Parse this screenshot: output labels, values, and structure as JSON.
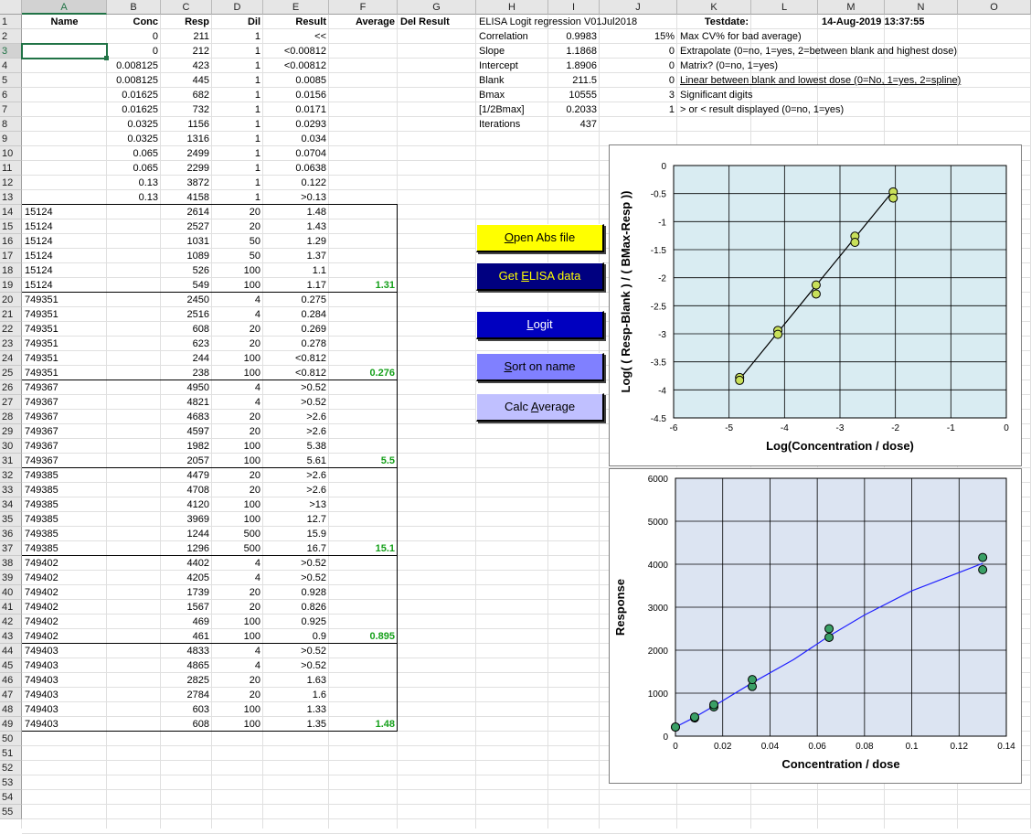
{
  "columns": [
    "A",
    "B",
    "C",
    "D",
    "E",
    "F",
    "G",
    "H",
    "I",
    "J",
    "K",
    "L",
    "M",
    "N",
    "O"
  ],
  "headers": {
    "name": "Name",
    "conc": "Conc",
    "resp": "Resp",
    "dil": "Dil",
    "result": "Result",
    "average": "Average",
    "del_result": "Del Result"
  },
  "standards": [
    {
      "row": "2",
      "conc": "0",
      "resp": "211",
      "dil": "1",
      "result": "<<"
    },
    {
      "row": "3",
      "conc": "0",
      "resp": "212",
      "dil": "1",
      "result": "<0.00812"
    },
    {
      "row": "4",
      "conc": "0.008125",
      "resp": "423",
      "dil": "1",
      "result": "<0.00812"
    },
    {
      "row": "5",
      "conc": "0.008125",
      "resp": "445",
      "dil": "1",
      "result": "0.0085"
    },
    {
      "row": "6",
      "conc": "0.01625",
      "resp": "682",
      "dil": "1",
      "result": "0.0156"
    },
    {
      "row": "7",
      "conc": "0.01625",
      "resp": "732",
      "dil": "1",
      "result": "0.0171"
    },
    {
      "row": "8",
      "conc": "0.0325",
      "resp": "1156",
      "dil": "1",
      "result": "0.0293"
    },
    {
      "row": "9",
      "conc": "0.0325",
      "resp": "1316",
      "dil": "1",
      "result": "0.034"
    },
    {
      "row": "10",
      "conc": "0.065",
      "resp": "2499",
      "dil": "1",
      "result": "0.0704"
    },
    {
      "row": "11",
      "conc": "0.065",
      "resp": "2299",
      "dil": "1",
      "result": "0.0638"
    },
    {
      "row": "12",
      "conc": "0.13",
      "resp": "3872",
      "dil": "1",
      "result": "0.122"
    },
    {
      "row": "13",
      "conc": "0.13",
      "resp": "4158",
      "dil": "1",
      "result": ">0.13"
    }
  ],
  "samples": [
    {
      "row": "14",
      "name": "15124",
      "resp": "2614",
      "dil": "20",
      "result": "1.48",
      "avg": ""
    },
    {
      "row": "15",
      "name": "15124",
      "resp": "2527",
      "dil": "20",
      "result": "1.43",
      "avg": ""
    },
    {
      "row": "16",
      "name": "15124",
      "resp": "1031",
      "dil": "50",
      "result": "1.29",
      "avg": ""
    },
    {
      "row": "17",
      "name": "15124",
      "resp": "1089",
      "dil": "50",
      "result": "1.37",
      "avg": ""
    },
    {
      "row": "18",
      "name": "15124",
      "resp": "526",
      "dil": "100",
      "result": "1.1",
      "avg": ""
    },
    {
      "row": "19",
      "name": "15124",
      "resp": "549",
      "dil": "100",
      "result": "1.17",
      "avg": "1.31"
    },
    {
      "row": "20",
      "name": "749351",
      "resp": "2450",
      "dil": "4",
      "result": "0.275",
      "avg": ""
    },
    {
      "row": "21",
      "name": "749351",
      "resp": "2516",
      "dil": "4",
      "result": "0.284",
      "avg": ""
    },
    {
      "row": "22",
      "name": "749351",
      "resp": "608",
      "dil": "20",
      "result": "0.269",
      "avg": ""
    },
    {
      "row": "23",
      "name": "749351",
      "resp": "623",
      "dil": "20",
      "result": "0.278",
      "avg": ""
    },
    {
      "row": "24",
      "name": "749351",
      "resp": "244",
      "dil": "100",
      "result": "<0.812",
      "avg": ""
    },
    {
      "row": "25",
      "name": "749351",
      "resp": "238",
      "dil": "100",
      "result": "<0.812",
      "avg": "0.276"
    },
    {
      "row": "26",
      "name": "749367",
      "resp": "4950",
      "dil": "4",
      "result": ">0.52",
      "avg": ""
    },
    {
      "row": "27",
      "name": "749367",
      "resp": "4821",
      "dil": "4",
      "result": ">0.52",
      "avg": ""
    },
    {
      "row": "28",
      "name": "749367",
      "resp": "4683",
      "dil": "20",
      "result": ">2.6",
      "avg": ""
    },
    {
      "row": "29",
      "name": "749367",
      "resp": "4597",
      "dil": "20",
      "result": ">2.6",
      "avg": ""
    },
    {
      "row": "30",
      "name": "749367",
      "resp": "1982",
      "dil": "100",
      "result": "5.38",
      "avg": ""
    },
    {
      "row": "31",
      "name": "749367",
      "resp": "2057",
      "dil": "100",
      "result": "5.61",
      "avg": "5.5"
    },
    {
      "row": "32",
      "name": "749385",
      "resp": "4479",
      "dil": "20",
      "result": ">2.6",
      "avg": ""
    },
    {
      "row": "33",
      "name": "749385",
      "resp": "4708",
      "dil": "20",
      "result": ">2.6",
      "avg": ""
    },
    {
      "row": "34",
      "name": "749385",
      "resp": "4120",
      "dil": "100",
      "result": ">13",
      "avg": ""
    },
    {
      "row": "35",
      "name": "749385",
      "resp": "3969",
      "dil": "100",
      "result": "12.7",
      "avg": ""
    },
    {
      "row": "36",
      "name": "749385",
      "resp": "1244",
      "dil": "500",
      "result": "15.9",
      "avg": ""
    },
    {
      "row": "37",
      "name": "749385",
      "resp": "1296",
      "dil": "500",
      "result": "16.7",
      "avg": "15.1"
    },
    {
      "row": "38",
      "name": "749402",
      "resp": "4402",
      "dil": "4",
      "result": ">0.52",
      "avg": ""
    },
    {
      "row": "39",
      "name": "749402",
      "resp": "4205",
      "dil": "4",
      "result": ">0.52",
      "avg": ""
    },
    {
      "row": "40",
      "name": "749402",
      "resp": "1739",
      "dil": "20",
      "result": "0.928",
      "avg": ""
    },
    {
      "row": "41",
      "name": "749402",
      "resp": "1567",
      "dil": "20",
      "result": "0.826",
      "avg": ""
    },
    {
      "row": "42",
      "name": "749402",
      "resp": "469",
      "dil": "100",
      "result": "0.925",
      "avg": ""
    },
    {
      "row": "43",
      "name": "749402",
      "resp": "461",
      "dil": "100",
      "result": "0.9",
      "avg": "0.895"
    },
    {
      "row": "44",
      "name": "749403",
      "resp": "4833",
      "dil": "4",
      "result": ">0.52",
      "avg": ""
    },
    {
      "row": "45",
      "name": "749403",
      "resp": "4865",
      "dil": "4",
      "result": ">0.52",
      "avg": ""
    },
    {
      "row": "46",
      "name": "749403",
      "resp": "2825",
      "dil": "20",
      "result": "1.63",
      "avg": ""
    },
    {
      "row": "47",
      "name": "749403",
      "resp": "2784",
      "dil": "20",
      "result": "1.6",
      "avg": ""
    },
    {
      "row": "48",
      "name": "749403",
      "resp": "603",
      "dil": "100",
      "result": "1.33",
      "avg": ""
    },
    {
      "row": "49",
      "name": "749403",
      "resp": "608",
      "dil": "100",
      "result": "1.35",
      "avg": "1.48"
    }
  ],
  "stats": {
    "title": "ELISA Logit regression V01Jul2018",
    "testdate_label": "Testdate:",
    "testdate_value": "14-Aug-2019 13:37:55",
    "rows": [
      {
        "label": "Correlation",
        "value": "0.9983"
      },
      {
        "label": "Slope",
        "value": "1.1868"
      },
      {
        "label": "Intercept",
        "value": "1.8906"
      },
      {
        "label": "Blank",
        "value": "211.5"
      },
      {
        "label": "Bmax",
        "value": "10555"
      },
      {
        "label": "[1/2Bmax]",
        "value": "0.2033"
      },
      {
        "label": "Iterations",
        "value": "437"
      }
    ]
  },
  "settings": [
    {
      "value": "15%",
      "text": "Max CV% for bad average)"
    },
    {
      "value": "0",
      "text": "Extrapolate (0=no, 1=yes, 2=between blank and highest dose)"
    },
    {
      "value": "0",
      "text": "Matrix? (0=no, 1=yes)"
    },
    {
      "value": "0",
      "text": "Linear between blank and lowest dose (0=No, 1=yes, 2=spline)"
    },
    {
      "value": "3",
      "text": "Significant digits"
    },
    {
      "value": "1",
      "text": "> or < result displayed (0=no, 1=yes)"
    }
  ],
  "buttons": {
    "open_abs": {
      "pre": "",
      "u": "O",
      "post": "pen Abs file"
    },
    "get_elisa": {
      "pre": "Get ",
      "u": "E",
      "post": "LISA data"
    },
    "logit": {
      "pre": "",
      "u": "L",
      "post": "ogit"
    },
    "sort": {
      "pre": "",
      "u": "S",
      "post": "ort on name"
    },
    "calc": {
      "pre": "Calc ",
      "u": "A",
      "post": "verage"
    }
  },
  "colors": {
    "open_abs": "#ffff00",
    "get_elisa": "#000080",
    "logit": "#0000c0",
    "sort": "#8080ff",
    "calc": "#c0c0ff",
    "plot1": "#d9ecf2",
    "plot2": "#dce4f2",
    "marker1": "#c8e05a",
    "marker2": "#3aa066",
    "curve": "#2020ff",
    "avg": "#16a01b"
  },
  "chart_data": [
    {
      "type": "scatter",
      "xlabel": "Log(Concentration / dose)",
      "ylabel": "Log( ( Resp-Blank ) / ( BMax-Resp ))",
      "xlim": [
        -6,
        0
      ],
      "ylim": [
        -4.5,
        0
      ],
      "xticks": [
        "-6",
        "-5",
        "-4",
        "-3",
        "-2",
        "-1",
        "0"
      ],
      "yticks": [
        "0",
        "-0.5",
        "-1",
        "-1.5",
        "-2",
        "-2.5",
        "-3",
        "-3.5",
        "-4",
        "-4.5"
      ],
      "points": [
        [
          -4.81,
          -3.78
        ],
        [
          -4.81,
          -3.83
        ],
        [
          -4.12,
          -2.94
        ],
        [
          -4.12,
          -3.01
        ],
        [
          -3.43,
          -2.13
        ],
        [
          -3.43,
          -2.29
        ],
        [
          -2.73,
          -1.26
        ],
        [
          -2.73,
          -1.37
        ],
        [
          -2.04,
          -0.47
        ],
        [
          -2.04,
          -0.58
        ]
      ],
      "line": [
        [
          -4.85,
          -3.86
        ],
        [
          -2.04,
          -0.45
        ]
      ]
    },
    {
      "type": "scatter",
      "xlabel": "Concentration / dose",
      "ylabel": "Response",
      "xlim": [
        0,
        0.14
      ],
      "ylim": [
        0,
        6000
      ],
      "xticks": [
        "0",
        "0.02",
        "0.04",
        "0.06",
        "0.08",
        "0.1",
        "0.12",
        "0.14"
      ],
      "yticks": [
        "0",
        "1000",
        "2000",
        "3000",
        "4000",
        "5000",
        "6000"
      ],
      "points": [
        [
          0,
          211
        ],
        [
          0,
          212
        ],
        [
          0.008125,
          423
        ],
        [
          0.008125,
          445
        ],
        [
          0.01625,
          682
        ],
        [
          0.01625,
          732
        ],
        [
          0.0325,
          1156
        ],
        [
          0.0325,
          1316
        ],
        [
          0.065,
          2499
        ],
        [
          0.065,
          2299
        ],
        [
          0.13,
          3872
        ],
        [
          0.13,
          4158
        ]
      ],
      "curve": [
        [
          0,
          211
        ],
        [
          0.008125,
          440
        ],
        [
          0.01625,
          700
        ],
        [
          0.0325,
          1240
        ],
        [
          0.05,
          1780
        ],
        [
          0.065,
          2330
        ],
        [
          0.08,
          2820
        ],
        [
          0.1,
          3380
        ],
        [
          0.13,
          4020
        ]
      ]
    }
  ]
}
